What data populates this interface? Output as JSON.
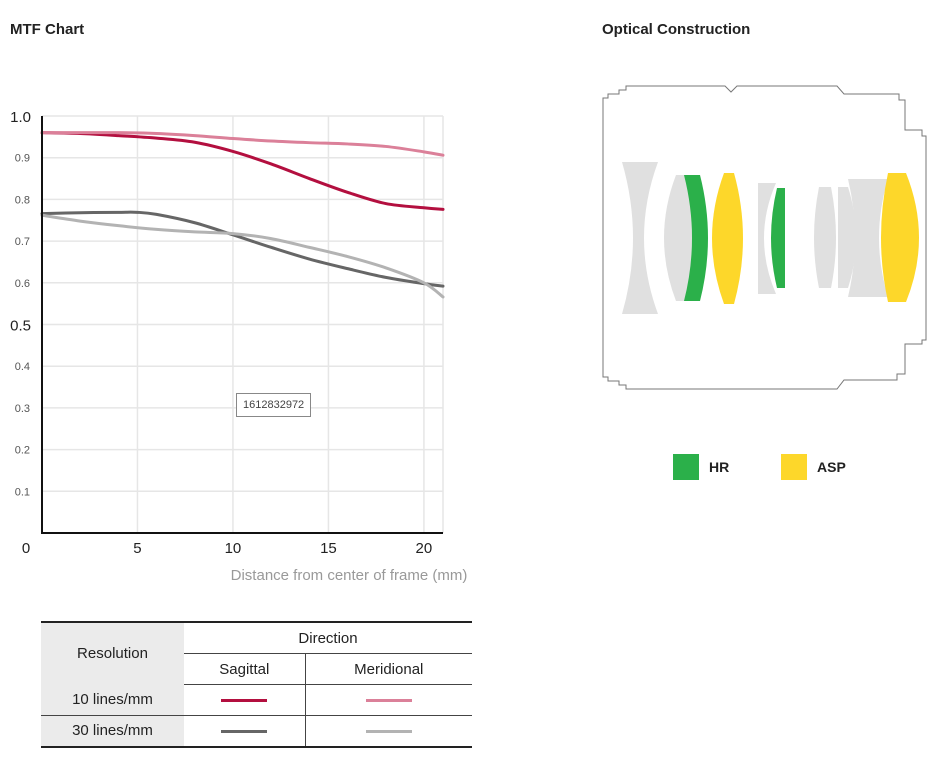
{
  "mtf": {
    "title": "MTF Chart"
  },
  "optical": {
    "title": "Optical Construction",
    "legend": [
      {
        "label": "HR",
        "color": "#2bb04a"
      },
      {
        "label": "ASP",
        "color": "#fdd72a"
      }
    ]
  },
  "watermark": "1612832972",
  "table": {
    "resolution_header": "Resolution",
    "direction_header": "Direction",
    "sagittal": "Sagittal",
    "meridional": "Meridional",
    "rows": [
      {
        "label": "10 lines/mm",
        "sagittal_color": "#b30f3f",
        "meridional_color": "#db8099"
      },
      {
        "label": "30 lines/mm",
        "sagittal_color": "#666666",
        "meridional_color": "#b3b3b3"
      }
    ]
  },
  "chart_data": {
    "type": "line",
    "title": "MTF Chart",
    "xlabel": "Distance from center of frame (mm)",
    "ylabel": "",
    "xlim": [
      0,
      21
    ],
    "ylim": [
      0,
      1.0
    ],
    "x_ticks": [
      "0",
      "5",
      "10",
      "15",
      "20"
    ],
    "x_tick_values": [
      0,
      5,
      10,
      15,
      20
    ],
    "y_ticks": [
      "0.1",
      "0.2",
      "0.3",
      "0.4",
      "0.5",
      "0.6",
      "0.7",
      "0.8",
      "0.9",
      "1.0"
    ],
    "y_tick_values": [
      0.1,
      0.2,
      0.3,
      0.4,
      0.5,
      0.6,
      0.7,
      0.8,
      0.9,
      1.0
    ],
    "grid": true,
    "series": [
      {
        "name": "10 lines/mm Sagittal",
        "color": "#b30f3f",
        "x": [
          0,
          2,
          4,
          6,
          8,
          10,
          12,
          14,
          16,
          18,
          20,
          21
        ],
        "y": [
          0.96,
          0.958,
          0.953,
          0.947,
          0.937,
          0.915,
          0.885,
          0.85,
          0.817,
          0.79,
          0.78,
          0.776
        ]
      },
      {
        "name": "10 lines/mm Meridional",
        "color": "#db8099",
        "x": [
          0,
          2,
          4,
          6,
          8,
          10,
          12,
          14,
          16,
          18,
          20,
          21
        ],
        "y": [
          0.96,
          0.96,
          0.96,
          0.958,
          0.953,
          0.946,
          0.94,
          0.936,
          0.933,
          0.927,
          0.914,
          0.906
        ]
      },
      {
        "name": "30 lines/mm Sagittal",
        "color": "#666666",
        "x": [
          0,
          2,
          4,
          5,
          6,
          8,
          10,
          12,
          14,
          16,
          18,
          20,
          21
        ],
        "y": [
          0.766,
          0.768,
          0.769,
          0.769,
          0.764,
          0.744,
          0.715,
          0.685,
          0.657,
          0.634,
          0.613,
          0.598,
          0.592
        ]
      },
      {
        "name": "30 lines/mm Meridional",
        "color": "#b3b3b3",
        "x": [
          0,
          2,
          4,
          6,
          8,
          10,
          12,
          14,
          16,
          18,
          20,
          21
        ],
        "y": [
          0.762,
          0.748,
          0.737,
          0.728,
          0.722,
          0.718,
          0.706,
          0.685,
          0.663,
          0.636,
          0.6,
          0.566
        ]
      }
    ]
  }
}
